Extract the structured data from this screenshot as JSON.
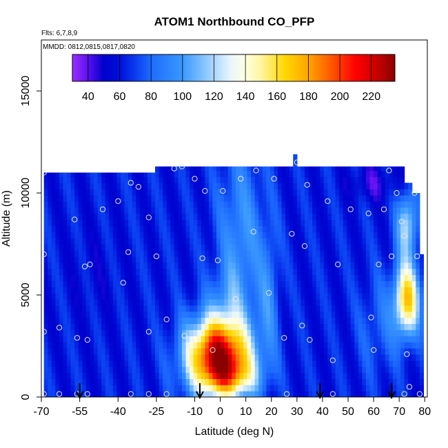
{
  "chart_data": {
    "type": "heatmap",
    "title": "ATOM1 Northbound CO_PFP",
    "subtitle_flights": "Flts: 6,7,8,9",
    "subtitle_dates": "MMDD: 0812,0815,0817,0820",
    "xlabel": "Latitude (deg N)",
    "ylabel": "Altitude (m)",
    "xlim": [
      -70,
      81
    ],
    "ylim": [
      0,
      17500
    ],
    "x_ticks": [
      -70,
      -55,
      -40,
      -25,
      -10,
      0,
      10,
      20,
      30,
      40,
      50,
      60,
      70,
      80
    ],
    "x_tick_labels": [
      "-70",
      "-55",
      "-40",
      "-25",
      "-10",
      "0",
      "10",
      "20",
      "30",
      "40",
      "50",
      "60",
      "70",
      "80"
    ],
    "y_ticks": [
      0,
      5000,
      10000,
      15000
    ],
    "y_tick_labels": [
      "0",
      "5000",
      "10000",
      "15000"
    ],
    "colorbar": {
      "min": 30,
      "max": 235,
      "ticks": [
        40,
        60,
        80,
        100,
        120,
        140,
        160,
        180,
        200,
        220
      ],
      "tick_labels": [
        "40",
        "60",
        "80",
        "100",
        "120",
        "140",
        "160",
        "180",
        "200",
        "220"
      ],
      "stops": [
        [
          30,
          "#9b30ff"
        ],
        [
          40,
          "#5b10ee"
        ],
        [
          50,
          "#0000cd"
        ],
        [
          60,
          "#0010d8"
        ],
        [
          70,
          "#0a3cf0"
        ],
        [
          80,
          "#1e6cff"
        ],
        [
          100,
          "#3a98ff"
        ],
        [
          115,
          "#8cc8ff"
        ],
        [
          130,
          "#e8f4ff"
        ],
        [
          140,
          "#ffffe0"
        ],
        [
          150,
          "#fff5a0"
        ],
        [
          165,
          "#ffd700"
        ],
        [
          180,
          "#ffa500"
        ],
        [
          195,
          "#ff5500"
        ],
        [
          210,
          "#ff0000"
        ],
        [
          225,
          "#c00000"
        ],
        [
          235,
          "#8b0000"
        ]
      ]
    },
    "arrow_latitudes": [
      -55,
      -8,
      39,
      67
    ],
    "sample_points": [
      [
        -69,
        11000
      ],
      [
        -69,
        7000
      ],
      [
        -69,
        3200
      ],
      [
        -69,
        150
      ],
      [
        -63,
        3400
      ],
      [
        -63,
        150
      ],
      [
        -57,
        8700
      ],
      [
        -56,
        2900
      ],
      [
        -56,
        150
      ],
      [
        -53,
        6400
      ],
      [
        -52,
        2800
      ],
      [
        -52,
        150
      ],
      [
        -51,
        6500
      ],
      [
        -46,
        9200
      ],
      [
        -40,
        9600
      ],
      [
        -38,
        5600
      ],
      [
        -36,
        7100
      ],
      [
        -35,
        10500
      ],
      [
        -35,
        150
      ],
      [
        -32,
        10300
      ],
      [
        -28,
        8800
      ],
      [
        -28,
        3200
      ],
      [
        -28,
        150
      ],
      [
        -25,
        6900
      ],
      [
        -21,
        3800
      ],
      [
        -21,
        150
      ],
      [
        -18,
        11200
      ],
      [
        -15,
        11300
      ],
      [
        -14,
        3000
      ],
      [
        -10,
        10700
      ],
      [
        -7,
        6800
      ],
      [
        -6,
        10100
      ],
      [
        -3,
        2300
      ],
      [
        -1,
        6700
      ],
      [
        1,
        10100
      ],
      [
        6,
        4800
      ],
      [
        8,
        10700
      ],
      [
        13,
        8100
      ],
      [
        14,
        11100
      ],
      [
        19,
        5100
      ],
      [
        21,
        10700
      ],
      [
        25,
        2900
      ],
      [
        26,
        150
      ],
      [
        28,
        8000
      ],
      [
        30,
        11500
      ],
      [
        32,
        3500
      ],
      [
        33,
        7400
      ],
      [
        34,
        10400
      ],
      [
        35,
        2800
      ],
      [
        42,
        9600
      ],
      [
        44,
        1800
      ],
      [
        44,
        150
      ],
      [
        46,
        6500
      ],
      [
        51,
        9200
      ],
      [
        58,
        9000
      ],
      [
        59,
        3900
      ],
      [
        60,
        2300
      ],
      [
        62,
        6500
      ],
      [
        64,
        9200
      ],
      [
        66,
        11100
      ],
      [
        67,
        6900
      ],
      [
        69,
        10000
      ],
      [
        71,
        8600
      ],
      [
        72,
        7900
      ],
      [
        72,
        150
      ],
      [
        73,
        2100
      ],
      [
        74,
        500
      ],
      [
        76,
        10000
      ],
      [
        77,
        6900
      ],
      [
        78,
        150
      ]
    ]
  }
}
